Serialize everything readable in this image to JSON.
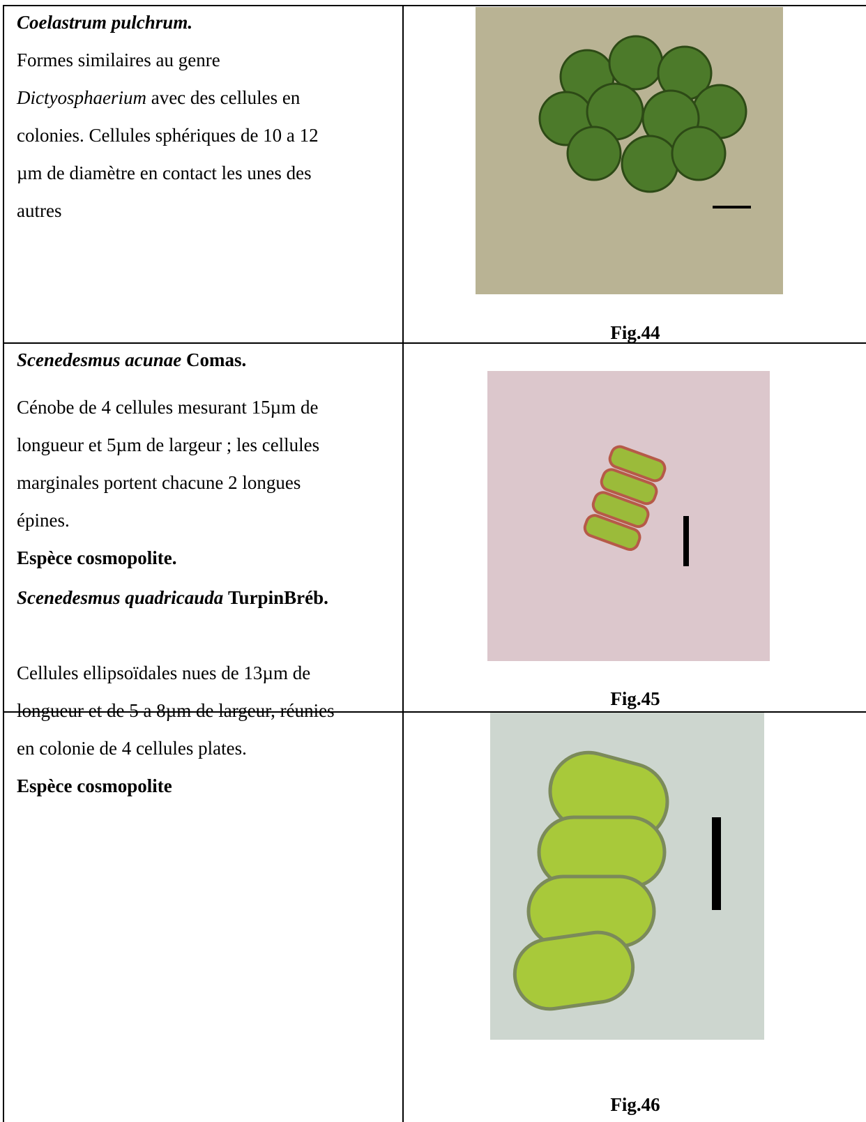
{
  "table": {
    "rows": [
      {
        "title": {
          "italic": "Coelastrum pulchrum."
        },
        "lines": [
          "Formes similaires au genre",
          {
            "italic": "Dictyosphaerium",
            "text": "avec des cellules en"
          },
          "colonies. Cellules sphériques de 10 a 12",
          "µm de diamètre en contact les unes des",
          "autres"
        ],
        "caption": "Fig.44"
      },
      {
        "title": {
          "italic": "Scenedesmus acunae",
          "text": "Comas."
        },
        "lines": [
          "Cénobe de 4 cellules mesurant 15µm de",
          "longueur et 5µm de largeur ; les cellules",
          "marginales portent chacune 2 longues",
          "épines."
        ],
        "note": "Espèce cosmopolite.",
        "caption": "Fig.45"
      },
      {
        "title": {
          "italic": "Scenedesmus quadricauda",
          "text": "TurpinBréb."
        },
        "lines": [
          "Cellules ellipsoïdales nues de 13µm de",
          "longueur et de 5 a 8µm de largeur, réunies",
          "en colonie de 4 cellules plates."
        ],
        "note": "Espèce cosmopolite",
        "caption": "Fig.46"
      }
    ]
  }
}
